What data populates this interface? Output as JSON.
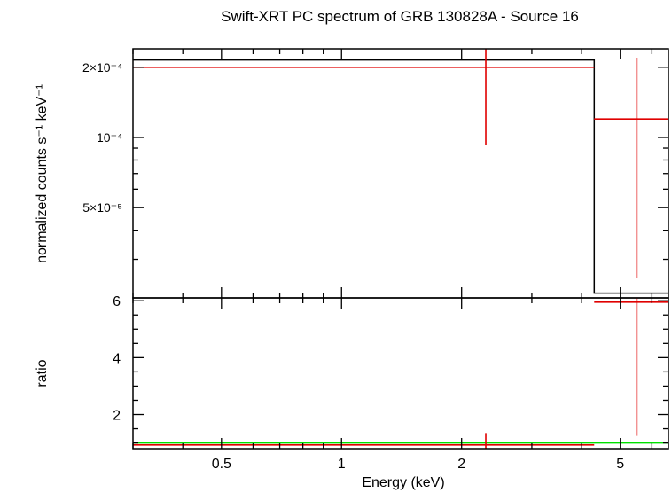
{
  "title": "Swift-XRT PC spectrum of GRB 130828A - Source 16",
  "xlabel": "Energy (keV)",
  "colors": {
    "data": "#e00000",
    "model": "#000000",
    "unity": "#00e000"
  },
  "x_ticks": [
    {
      "value": 0.5,
      "label": "0.5"
    },
    {
      "value": 1,
      "label": "1"
    },
    {
      "value": 2,
      "label": "2"
    },
    {
      "value": 5,
      "label": "5"
    }
  ],
  "chart_data": [
    {
      "type": "line",
      "panel": "spectrum",
      "ylabel": "normalized counts s⁻¹ keV⁻¹",
      "xscale": "log",
      "yscale": "log",
      "xlim": [
        0.3,
        6.6
      ],
      "ylim": [
        2.05e-05,
        0.00024
      ],
      "y_ticks": [
        {
          "value": 0.0002,
          "label": "2×10⁻⁴"
        },
        {
          "value": 0.0001,
          "label": "10⁻⁴"
        },
        {
          "value": 5e-05,
          "label": "5×10⁻⁵"
        }
      ],
      "series": [
        {
          "role": "data",
          "points": [
            {
              "x": 2.3,
              "x_lo": 0.3,
              "x_hi": 4.3,
              "y": 0.0002,
              "y_lo": 9.3e-05,
              "y_hi": 0.00024
            },
            {
              "x": 5.5,
              "x_lo": 4.3,
              "x_hi": 6.6,
              "y": 0.00012,
              "y_lo": 2.5e-05,
              "y_hi": 0.00022
            }
          ]
        },
        {
          "role": "model",
          "steps": [
            {
              "x0": 0.3,
              "x1": 4.3,
              "y": 0.000215
            },
            {
              "x0": 4.3,
              "x1": 6.6,
              "y": 2.15e-05
            }
          ]
        }
      ]
    },
    {
      "type": "line",
      "panel": "ratio",
      "ylabel": "ratio",
      "xscale": "log",
      "yscale": "linear",
      "xlim": [
        0.3,
        6.6
      ],
      "ylim": [
        0.8,
        6.1
      ],
      "y_ticks": [
        {
          "value": 2,
          "label": "2"
        },
        {
          "value": 4,
          "label": "4"
        },
        {
          "value": 6,
          "label": "6"
        }
      ],
      "unity_line": 1,
      "series": [
        {
          "role": "data",
          "points": [
            {
              "x": 2.3,
              "x_lo": 0.3,
              "x_hi": 4.3,
              "y": 0.93,
              "y_lo": 0.8,
              "y_hi": 1.35
            },
            {
              "x": 5.5,
              "x_lo": 4.3,
              "x_hi": 6.6,
              "y": 5.95,
              "y_lo": 1.25,
              "y_hi": 6.1
            }
          ]
        }
      ]
    }
  ]
}
